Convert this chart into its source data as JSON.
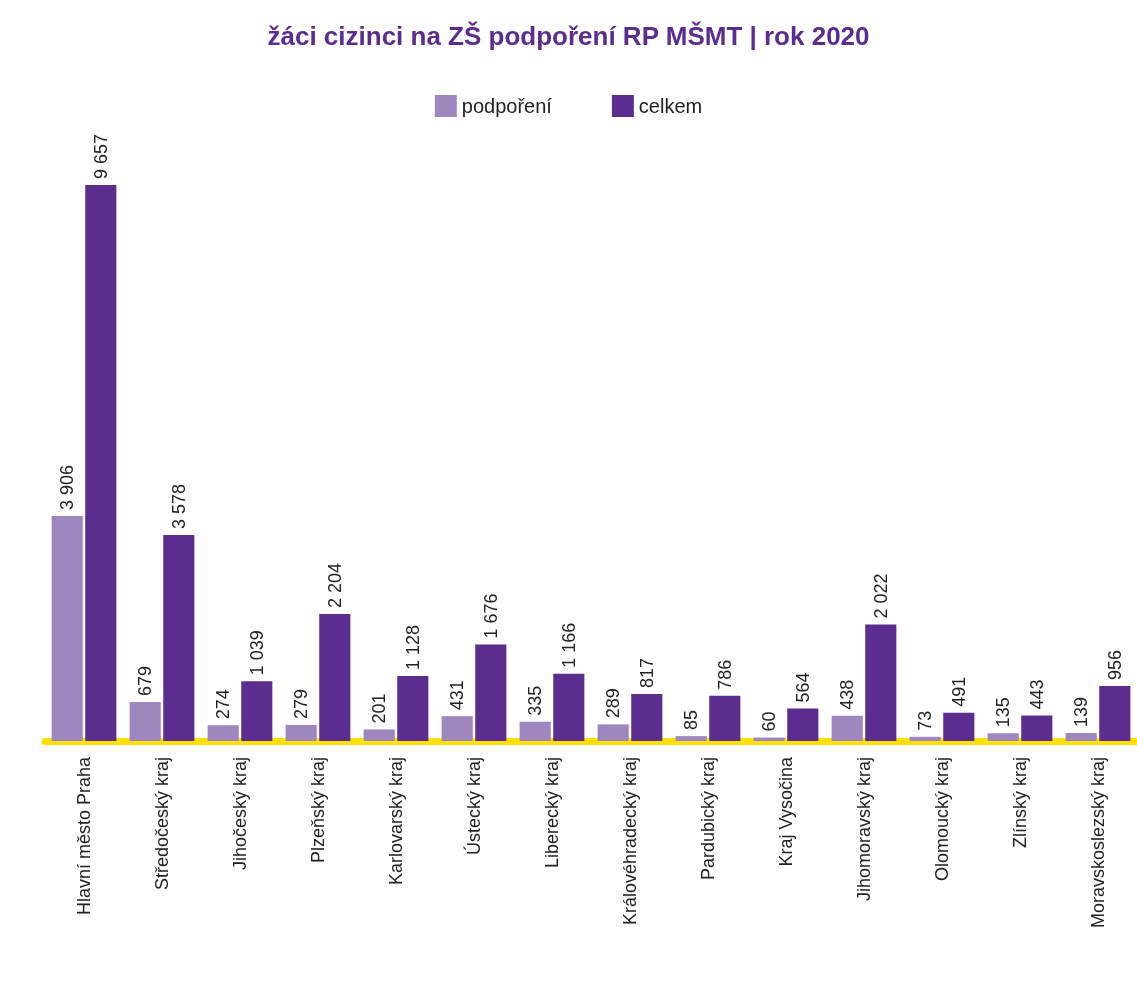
{
  "chart_data": {
    "type": "bar",
    "title": "žáci cizinci na ZŠ podpoření RP MŠMT | rok 2020",
    "legend": "top",
    "categories": [
      "Hlavní město Praha",
      "Středočeský kraj",
      "Jihočeský kraj",
      "Plzeňský kraj",
      "Karlovarský kraj",
      "Ústecký kraj",
      "Liberecký kraj",
      "Královéhradecký kraj",
      "Pardubický kraj",
      "Kraj Vysočina",
      "Jihomoravský kraj",
      "Olomoucký kraj",
      "Zlínský kraj",
      "Moravskoslezský kraj"
    ],
    "series": [
      {
        "name": "podpoření",
        "color": "#9e86bf",
        "values": [
          3906,
          679,
          274,
          279,
          201,
          431,
          335,
          289,
          85,
          60,
          438,
          73,
          135,
          139
        ],
        "value_labels": [
          "3 906",
          "679",
          "274",
          "279",
          "201",
          "431",
          "335",
          "289",
          "85",
          "60",
          "438",
          "73",
          "135",
          "139"
        ]
      },
      {
        "name": "celkem",
        "color": "#5b2d8e",
        "values": [
          9657,
          3578,
          1039,
          2204,
          1128,
          1676,
          1166,
          817,
          786,
          564,
          2022,
          491,
          443,
          956
        ],
        "value_labels": [
          "9 657",
          "3 578",
          "1 039",
          "2 204",
          "1 128",
          "1 676",
          "1 166",
          "817",
          "786",
          "564",
          "2 022",
          "491",
          "443",
          "956"
        ]
      }
    ]
  }
}
